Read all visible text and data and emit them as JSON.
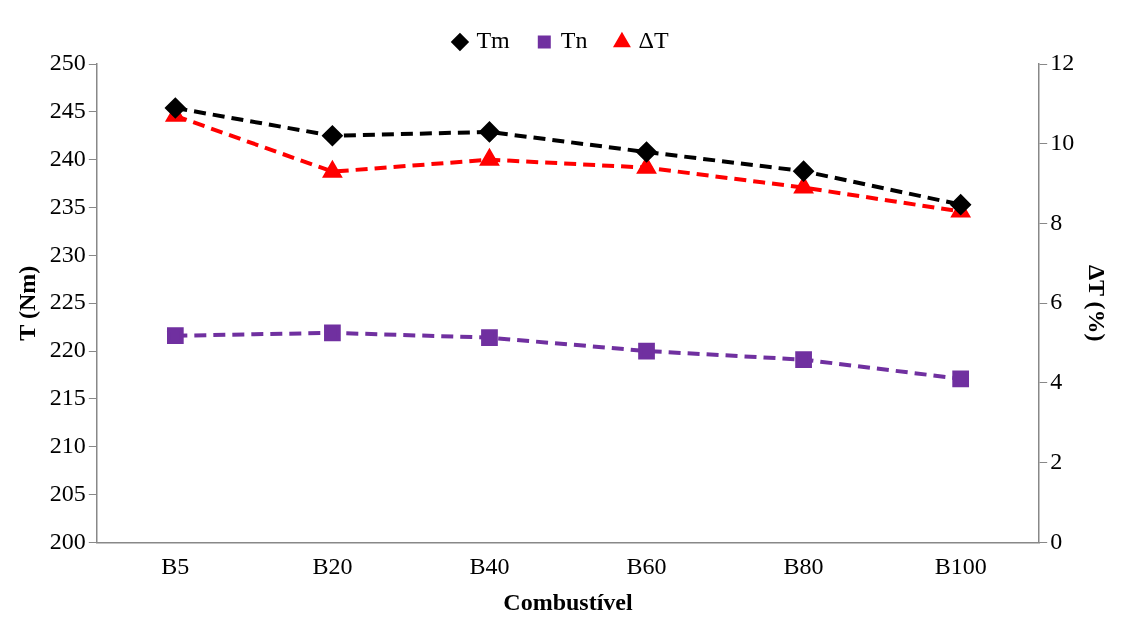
{
  "chart_data": {
    "type": "line",
    "xlabel": "Combustível",
    "ylabel": "T (Nm)",
    "y2label": "ΔT (%)",
    "categories": [
      "B5",
      "B20",
      "B40",
      "B60",
      "B80",
      "B100"
    ],
    "series": [
      {
        "name": "Tm",
        "color": "#000000",
        "marker": "diamond",
        "values": [
          245.4,
          242.5,
          242.9,
          240.8,
          238.8,
          235.3
        ]
      },
      {
        "name": "Tn",
        "color": "#7030a0",
        "marker": "square",
        "values": [
          221.6,
          221.9,
          221.4,
          220.0,
          219.1,
          217.1
        ]
      },
      {
        "name": "ΔT",
        "color": "#ff0000",
        "marker": "triangle",
        "axis": "y2",
        "values": [
          10.7,
          9.3,
          9.6,
          9.4,
          8.9,
          8.3
        ]
      }
    ],
    "ylim": [
      200,
      250
    ],
    "yticks": [
      200,
      205,
      210,
      215,
      220,
      225,
      230,
      235,
      240,
      245,
      250
    ],
    "y2lim": [
      0,
      12
    ],
    "y2ticks": [
      0,
      2,
      4,
      6,
      8,
      10,
      12
    ],
    "grid": false,
    "legend": "top",
    "line_style": "dashed"
  }
}
